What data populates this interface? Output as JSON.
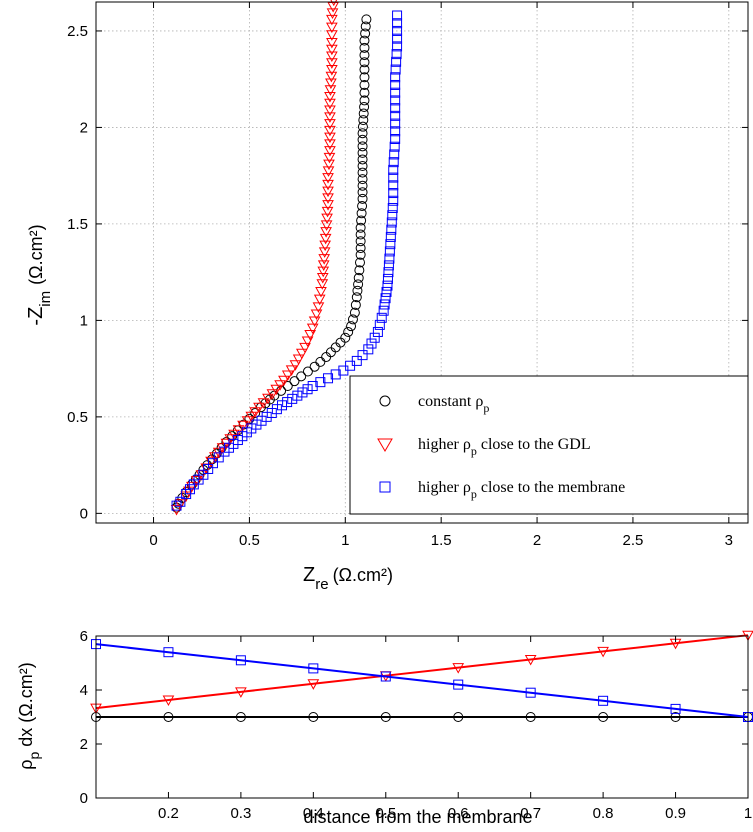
{
  "chart_data": [
    {
      "type": "scatter",
      "xlabel": "Z",
      "xlabel_sub": "re",
      "xlabel_unit": "(Ω.cm²)",
      "ylabel": "-Z",
      "ylabel_sub": "im",
      "ylabel_unit": "(Ω.cm²)",
      "xlim": [
        -0.3,
        3.1
      ],
      "ylim": [
        -0.05,
        2.65
      ],
      "xticks": [
        "0",
        "0.5",
        "1",
        "1.5",
        "2",
        "2.5",
        "3"
      ],
      "xtick_values": [
        0,
        0.5,
        1,
        1.5,
        2,
        2.5,
        3
      ],
      "yticks": [
        "0",
        "0.5",
        "1",
        "1.5",
        "2",
        "2.5"
      ],
      "ytick_values": [
        0,
        0.5,
        1,
        1.5,
        2,
        2.5
      ],
      "grid": true,
      "legend_position": "lower-right",
      "series": [
        {
          "legend_main": "constant ρ",
          "legend_sub": "p",
          "legend_rest": "",
          "marker": "circle",
          "color": "#000000",
          "points": [
            [
              0.12,
              0.03
            ],
            [
              0.13,
              0.05
            ],
            [
              0.15,
              0.08
            ],
            [
              0.17,
              0.11
            ],
            [
              0.2,
              0.15
            ],
            [
              0.24,
              0.2
            ],
            [
              0.28,
              0.25
            ],
            [
              0.33,
              0.31
            ],
            [
              0.38,
              0.37
            ],
            [
              0.44,
              0.43
            ],
            [
              0.5,
              0.49
            ],
            [
              0.56,
              0.55
            ],
            [
              0.63,
              0.61
            ],
            [
              0.7,
              0.66
            ],
            [
              0.77,
              0.71
            ],
            [
              0.84,
              0.76
            ],
            [
              0.9,
              0.81
            ],
            [
              0.95,
              0.86
            ],
            [
              1.0,
              0.91
            ],
            [
              1.03,
              0.97
            ],
            [
              1.05,
              1.04
            ],
            [
              1.06,
              1.12
            ],
            [
              1.07,
              1.22
            ],
            [
              1.08,
              1.34
            ],
            [
              1.08,
              1.48
            ],
            [
              1.09,
              1.63
            ],
            [
              1.09,
              1.8
            ],
            [
              1.09,
              1.97
            ],
            [
              1.1,
              2.14
            ],
            [
              1.1,
              2.3
            ],
            [
              1.1,
              2.45
            ],
            [
              1.11,
              2.56
            ]
          ]
        },
        {
          "legend_main": "higher ρ",
          "legend_sub": "p",
          "legend_rest": " close to the GDL",
          "marker": "triangle-down",
          "color": "#ff0000",
          "points": [
            [
              0.12,
              0.02
            ],
            [
              0.14,
              0.05
            ],
            [
              0.17,
              0.09
            ],
            [
              0.2,
              0.14
            ],
            [
              0.25,
              0.2
            ],
            [
              0.3,
              0.27
            ],
            [
              0.36,
              0.34
            ],
            [
              0.42,
              0.41
            ],
            [
              0.49,
              0.48
            ],
            [
              0.55,
              0.55
            ],
            [
              0.62,
              0.62
            ],
            [
              0.68,
              0.69
            ],
            [
              0.74,
              0.77
            ],
            [
              0.79,
              0.86
            ],
            [
              0.83,
              0.96
            ],
            [
              0.86,
              1.07
            ],
            [
              0.88,
              1.19
            ],
            [
              0.89,
              1.32
            ],
            [
              0.9,
              1.46
            ],
            [
              0.91,
              1.6
            ],
            [
              0.91,
              1.74
            ],
            [
              0.92,
              1.88
            ],
            [
              0.92,
              2.02
            ],
            [
              0.92,
              2.16
            ],
            [
              0.93,
              2.3
            ],
            [
              0.93,
              2.44
            ],
            [
              0.93,
              2.56
            ],
            [
              0.94,
              2.66
            ]
          ]
        },
        {
          "legend_main": "higher ρ",
          "legend_sub": "p",
          "legend_rest": " close to the membrane",
          "marker": "square",
          "color": "#0000ff",
          "points": [
            [
              0.12,
              0.04
            ],
            [
              0.14,
              0.06
            ],
            [
              0.17,
              0.1
            ],
            [
              0.21,
              0.15
            ],
            [
              0.26,
              0.2
            ],
            [
              0.31,
              0.26
            ],
            [
              0.37,
              0.32
            ],
            [
              0.44,
              0.38
            ],
            [
              0.51,
              0.44
            ],
            [
              0.59,
              0.5
            ],
            [
              0.67,
              0.56
            ],
            [
              0.75,
              0.61
            ],
            [
              0.83,
              0.66
            ],
            [
              0.91,
              0.7
            ],
            [
              0.99,
              0.74
            ],
            [
              1.06,
              0.79
            ],
            [
              1.12,
              0.85
            ],
            [
              1.17,
              0.94
            ],
            [
              1.2,
              1.05
            ],
            [
              1.22,
              1.18
            ],
            [
              1.23,
              1.32
            ],
            [
              1.24,
              1.47
            ],
            [
              1.25,
              1.62
            ],
            [
              1.25,
              1.78
            ],
            [
              1.26,
              1.94
            ],
            [
              1.26,
              2.1
            ],
            [
              1.26,
              2.26
            ],
            [
              1.27,
              2.42
            ],
            [
              1.27,
              2.58
            ]
          ]
        }
      ]
    },
    {
      "type": "line",
      "xlabel": "distance from the membrane",
      "ylabel": "ρ",
      "ylabel_sub": "p",
      "ylabel_rest": " dx (Ω.cm²)",
      "xlim": [
        0.1,
        1.0
      ],
      "ylim": [
        0,
        6
      ],
      "xticks": [
        "0.2",
        "0.3",
        "0.4",
        "0.5",
        "0.6",
        "0.7",
        "0.8",
        "0.9",
        "1"
      ],
      "xtick_values": [
        0.2,
        0.3,
        0.4,
        0.5,
        0.6,
        0.7,
        0.8,
        0.9,
        1.0
      ],
      "yticks": [
        "0",
        "2",
        "4",
        "6"
      ],
      "ytick_values": [
        0,
        2,
        4,
        6
      ],
      "grid": false,
      "x": [
        0.1,
        0.2,
        0.3,
        0.4,
        0.5,
        0.6,
        0.7,
        0.8,
        0.9,
        1.0
      ],
      "series": [
        {
          "marker": "circle",
          "color": "#000000",
          "values": [
            3,
            3,
            3,
            3,
            3,
            3,
            3,
            3,
            3,
            3
          ]
        },
        {
          "marker": "triangle-down",
          "color": "#ff0000",
          "values": [
            3.33,
            3.63,
            3.93,
            4.23,
            4.53,
            4.83,
            5.13,
            5.43,
            5.73,
            6.03
          ]
        },
        {
          "marker": "square",
          "color": "#0000ff",
          "values": [
            5.7,
            5.4,
            5.1,
            4.8,
            4.5,
            4.2,
            3.9,
            3.6,
            3.3,
            3.0
          ]
        }
      ]
    }
  ]
}
